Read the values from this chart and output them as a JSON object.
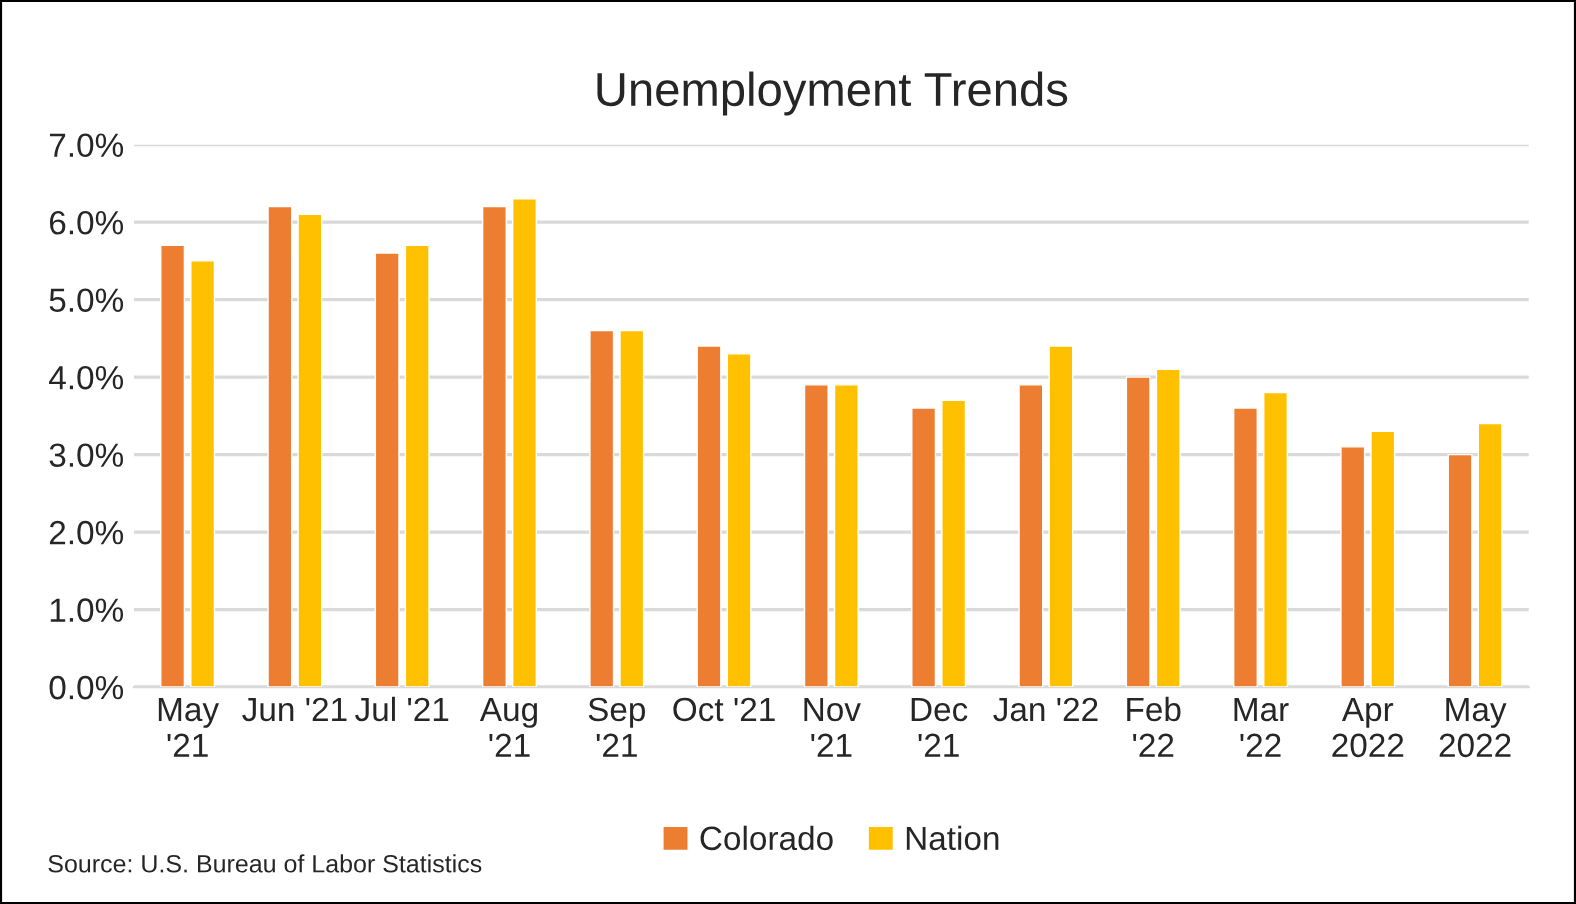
{
  "chart_data": {
    "type": "bar",
    "title": "Unemployment Trends",
    "categories": [
      "May\n'21",
      "Jun '21",
      "Jul '21",
      "Aug\n'21",
      "Sep\n'21",
      "Oct '21",
      "Nov\n'21",
      "Dec\n'21",
      "Jan '22",
      "Feb\n'22",
      "Mar\n'22",
      "Apr\n2022",
      "May\n2022"
    ],
    "series": [
      {
        "name": "Colorado",
        "color": "#ed7d31",
        "values": [
          5.7,
          6.2,
          5.6,
          6.2,
          4.6,
          4.4,
          3.9,
          3.6,
          3.9,
          4.0,
          3.6,
          3.1,
          3.0
        ]
      },
      {
        "name": "Nation",
        "color": "#ffc000",
        "values": [
          5.5,
          6.1,
          5.7,
          6.3,
          4.6,
          4.3,
          3.9,
          3.7,
          4.4,
          4.1,
          3.8,
          3.3,
          3.4
        ]
      }
    ],
    "ylim": [
      0,
      7
    ],
    "yticks": [
      {
        "value": 0,
        "label": "0.0%"
      },
      {
        "value": 1,
        "label": "1.0%"
      },
      {
        "value": 2,
        "label": "2.0%"
      },
      {
        "value": 3,
        "label": "3.0%"
      },
      {
        "value": 4,
        "label": "4.0%"
      },
      {
        "value": 5,
        "label": "5.0%"
      },
      {
        "value": 6,
        "label": "6.0%"
      },
      {
        "value": 7,
        "label": "7.0%"
      }
    ],
    "grid": "y",
    "legend": "bottom",
    "annotations": [
      "Source: U.S. Bureau of Labor Statistics"
    ]
  }
}
